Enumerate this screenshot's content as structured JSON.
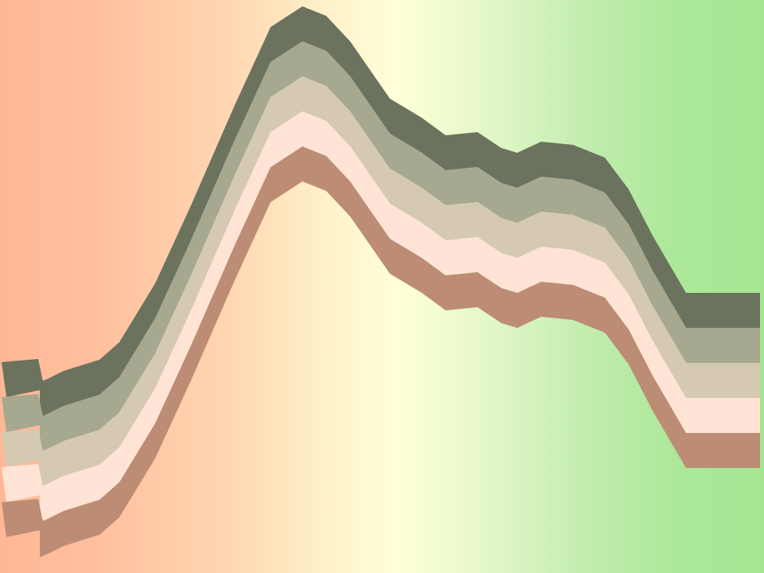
{
  "background": {
    "gradient_stops": [
      {
        "offset": 0.0,
        "color": "#ffb896"
      },
      {
        "offset": 0.12,
        "color": "#ffbf9e"
      },
      {
        "offset": 0.3,
        "color": "#ffd6b2"
      },
      {
        "offset": 0.42,
        "color": "#fff0c8"
      },
      {
        "offset": 0.52,
        "color": "#ffffd8"
      },
      {
        "offset": 0.62,
        "color": "#e8f8cc"
      },
      {
        "offset": 0.75,
        "color": "#c6eeb2"
      },
      {
        "offset": 0.88,
        "color": "#ace89a"
      },
      {
        "offset": 1.0,
        "color": "#a6e692"
      }
    ]
  },
  "bands": [
    {
      "name": "band-dark-olive",
      "color": "#6b735e"
    },
    {
      "name": "band-grey-sage",
      "color": "#a6a890"
    },
    {
      "name": "band-beige",
      "color": "#d6c9b2"
    },
    {
      "name": "band-pale-peach",
      "color": "#ffe4d6"
    },
    {
      "name": "band-terracotta",
      "color": "#bd8c74"
    }
  ]
}
